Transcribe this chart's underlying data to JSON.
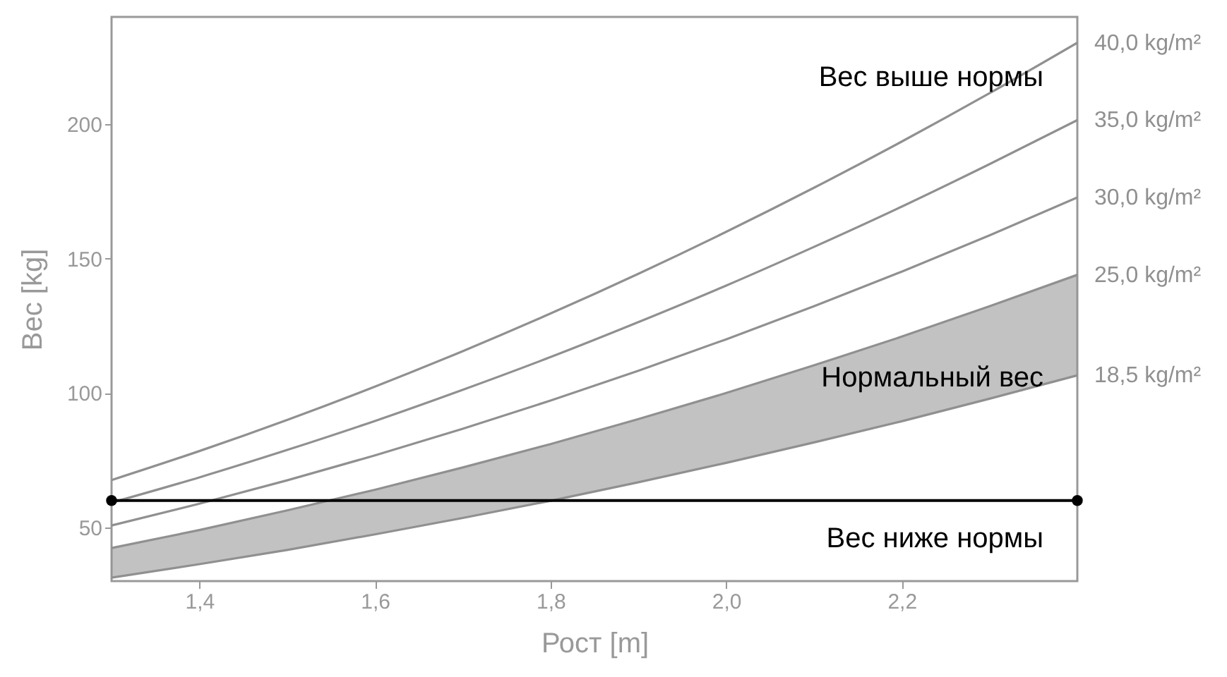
{
  "chart_data": {
    "type": "line",
    "xlabel": "Рост [m]",
    "ylabel": "Вес [kg]",
    "x": [
      1.3,
      1.4,
      1.5,
      1.6,
      1.7,
      1.8,
      1.9,
      2.0,
      2.1,
      2.2,
      2.3,
      2.4
    ],
    "xlim": [
      1.3,
      2.4
    ],
    "ylim": [
      30,
      240
    ],
    "xticks": [
      {
        "value": 1.4,
        "label": "1,4"
      },
      {
        "value": 1.6,
        "label": "1,6"
      },
      {
        "value": 1.8,
        "label": "1,8"
      },
      {
        "value": 2.0,
        "label": "2,0"
      },
      {
        "value": 2.2,
        "label": "2,2"
      }
    ],
    "yticks": [
      50,
      100,
      150,
      200
    ],
    "grid": false,
    "marker": "none",
    "line_style": "solid",
    "series": [
      {
        "name": "18,5 kg/m²",
        "color": "#909090",
        "values": [
          31.3,
          36.3,
          41.6,
          47.4,
          53.5,
          59.9,
          66.8,
          74.0,
          81.6,
          89.5,
          97.9,
          106.6
        ]
      },
      {
        "name": "25,0 kg/m²",
        "type": "area",
        "color": "#909090",
        "values": [
          42.3,
          49.0,
          56.3,
          64.0,
          72.3,
          81.0,
          90.3,
          100.0,
          110.3,
          121.0,
          132.3,
          144.0
        ]
      },
      {
        "name": "30,0 kg/m²",
        "color": "#909090",
        "values": [
          50.7,
          58.8,
          67.5,
          76.8,
          86.7,
          97.2,
          108.3,
          120.0,
          132.3,
          145.2,
          158.7,
          172.8
        ]
      },
      {
        "name": "35,0 kg/m²",
        "color": "#909090",
        "values": [
          59.2,
          68.6,
          78.8,
          89.6,
          101.2,
          113.4,
          126.4,
          140.0,
          154.4,
          169.4,
          185.2,
          201.6
        ]
      },
      {
        "name": "40,0 kg/m²",
        "color": "#909090",
        "values": [
          67.6,
          78.4,
          90.0,
          102.4,
          115.6,
          129.6,
          144.4,
          160.0,
          176.4,
          193.6,
          211.6,
          230.4
        ]
      },
      {
        "color": "#000000",
        "x": [
          1.3,
          2.4
        ],
        "values": [
          60,
          60
        ],
        "marker": "circle"
      }
    ],
    "annotations": [
      "Вес выше нормы",
      "Нормальный вес",
      "Вес ниже нормы"
    ]
  }
}
